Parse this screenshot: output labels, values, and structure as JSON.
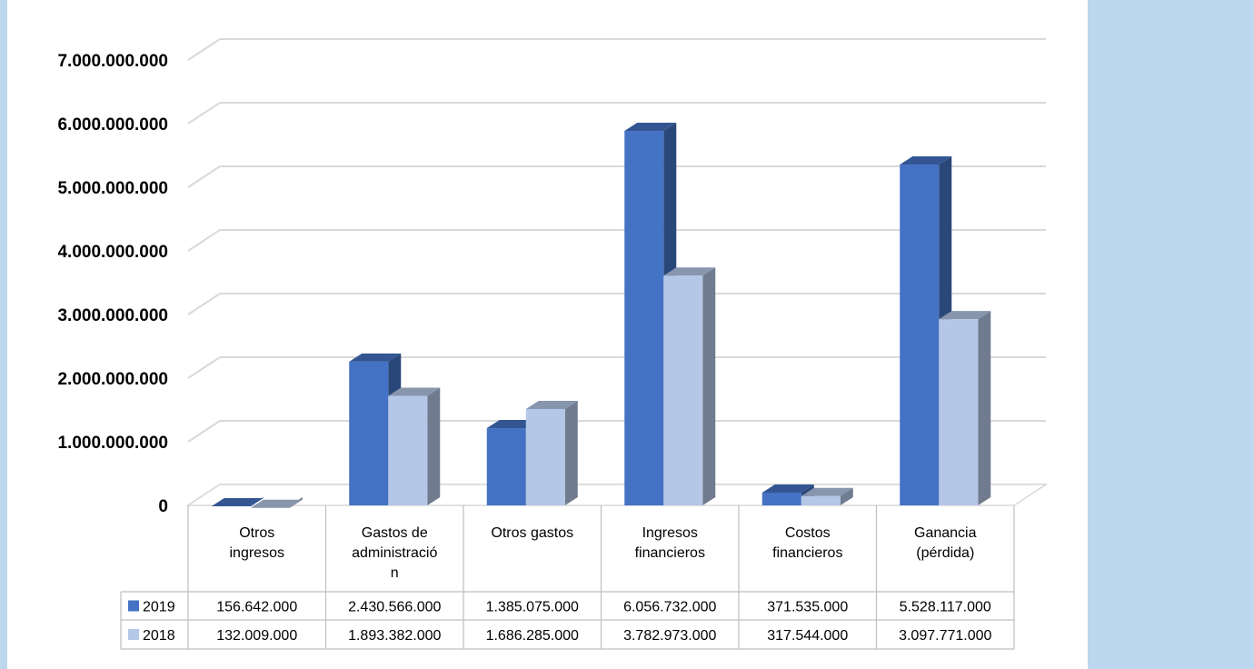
{
  "colors": {
    "series_2019": "#4472c4",
    "series_2018": "#b4c7e7",
    "panel": "#bdd7ee",
    "grid": "#d9d9d9"
  },
  "chart_data": {
    "type": "bar",
    "style": "3d-clustered-column",
    "categories": [
      [
        "Otros",
        "ingresos"
      ],
      [
        "Gastos de",
        "administració",
        "n"
      ],
      [
        "Otros gastos"
      ],
      [
        "Ingresos",
        "financieros"
      ],
      [
        "Costos",
        "financieros"
      ],
      [
        "Ganancia",
        "(pérdida)"
      ]
    ],
    "series": [
      {
        "name": "2019",
        "values": [
          156642000,
          2430566000,
          1385075000,
          6056732000,
          371535000,
          5528117000
        ],
        "labels": [
          "156.642.000",
          "2.430.566.000",
          "1.385.075.000",
          "6.056.732.000",
          "371.535.000",
          "5.528.117.000"
        ]
      },
      {
        "name": "2018",
        "values": [
          132009000,
          1893382000,
          1686285000,
          3782973000,
          317544000,
          3097771000
        ],
        "labels": [
          "132.009.000",
          "1.893.382.000",
          "1.686.285.000",
          "3.782.973.000",
          "317.544.000",
          "3.097.771.000"
        ]
      }
    ],
    "yticks": [
      "0",
      "1.000.000.000",
      "2.000.000.000",
      "3.000.000.000",
      "4.000.000.000",
      "5.000.000.000",
      "6.000.000.000",
      "7.000.000.000"
    ],
    "ylim": [
      0,
      7000000000
    ],
    "grid": true,
    "legend": "data-table"
  }
}
